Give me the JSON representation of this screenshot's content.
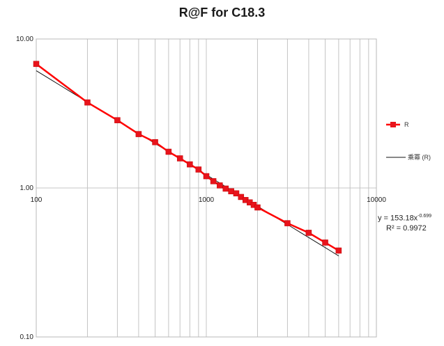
{
  "chart_data": {
    "type": "scatter",
    "title": "R@F  for C18.3",
    "xscale": "log",
    "yscale": "log",
    "xlim": [
      100,
      10000
    ],
    "ylim": [
      0.1,
      10
    ],
    "x_ticks": [
      "100",
      "1000",
      "10000"
    ],
    "y_ticks": [
      "10.00",
      "1.00",
      "0.10"
    ],
    "grid": {
      "vertical_minor": true,
      "horizontal": false
    },
    "legend": {
      "placement": "right"
    },
    "series": [
      {
        "name": "R",
        "color": "#ff0000",
        "marker": "square",
        "points": [
          [
            100,
            6.8
          ],
          [
            200,
            3.75
          ],
          [
            300,
            2.85
          ],
          [
            400,
            2.3
          ],
          [
            500,
            2.03
          ],
          [
            600,
            1.75
          ],
          [
            700,
            1.58
          ],
          [
            800,
            1.44
          ],
          [
            900,
            1.33
          ],
          [
            1000,
            1.2
          ],
          [
            1100,
            1.11
          ],
          [
            1200,
            1.04
          ],
          [
            1300,
            0.99
          ],
          [
            1400,
            0.95
          ],
          [
            1500,
            0.92
          ],
          [
            1600,
            0.87
          ],
          [
            1700,
            0.83
          ],
          [
            1800,
            0.8
          ],
          [
            1900,
            0.77
          ],
          [
            2000,
            0.74
          ],
          [
            3000,
            0.58
          ],
          [
            4000,
            0.5
          ],
          [
            5000,
            0.43
          ],
          [
            6000,
            0.38
          ]
        ]
      },
      {
        "name": "乘冪 (R)",
        "color": "#000000",
        "type": "trendline",
        "fit": "power",
        "coef": 153.18,
        "exponent": -0.699,
        "x_range": [
          100,
          6000
        ]
      }
    ],
    "annotations": {
      "equation_prefix": "y = 153.18x",
      "equation_exponent": "-0.699",
      "r_squared": "R² = 0.9972"
    }
  }
}
